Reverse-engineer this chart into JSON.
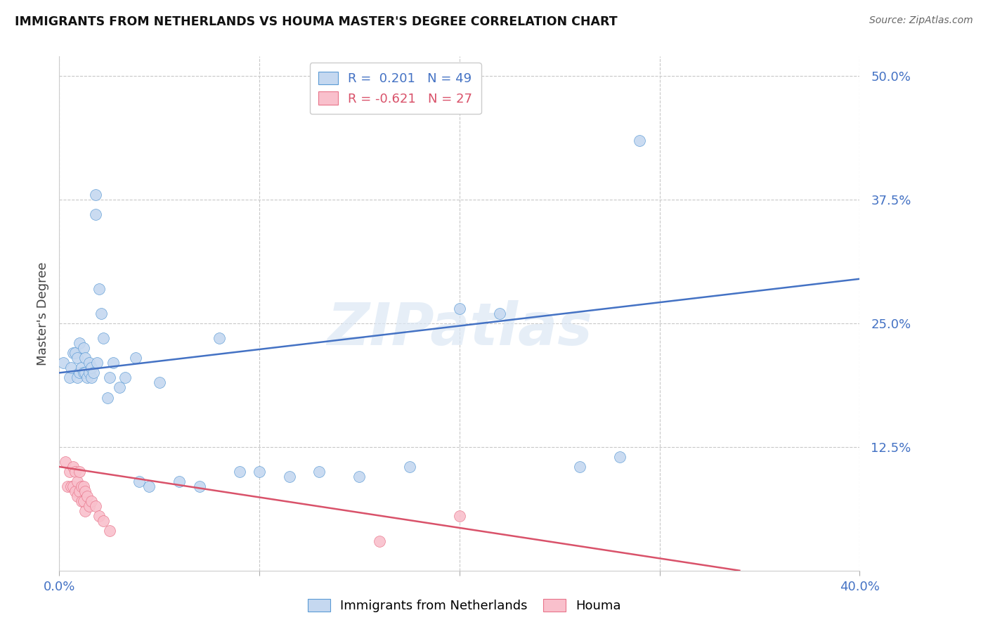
{
  "title": "IMMIGRANTS FROM NETHERLANDS VS HOUMA MASTER'S DEGREE CORRELATION CHART",
  "source": "Source: ZipAtlas.com",
  "ylabel": "Master's Degree",
  "ytick_labels": [
    "12.5%",
    "25.0%",
    "37.5%",
    "50.0%"
  ],
  "ytick_values": [
    0.125,
    0.25,
    0.375,
    0.5
  ],
  "xlim": [
    0.0,
    0.4
  ],
  "ylim": [
    0.0,
    0.52
  ],
  "legend1_r": "0.201",
  "legend1_n": "49",
  "legend2_r": "-0.621",
  "legend2_n": "27",
  "blue_fill": "#c5d8f0",
  "pink_fill": "#f9c0cc",
  "blue_edge": "#5b9bd5",
  "pink_edge": "#e8748a",
  "line_blue": "#4472c4",
  "line_pink": "#d9526a",
  "tick_color": "#4472c4",
  "grid_color": "#c8c8c8",
  "watermark": "ZIPatlas",
  "blue_scatter_x": [
    0.002,
    0.005,
    0.006,
    0.007,
    0.008,
    0.009,
    0.009,
    0.01,
    0.01,
    0.011,
    0.012,
    0.012,
    0.013,
    0.013,
    0.014,
    0.015,
    0.015,
    0.016,
    0.016,
    0.017,
    0.018,
    0.018,
    0.019,
    0.02,
    0.021,
    0.022,
    0.024,
    0.025,
    0.027,
    0.03,
    0.033,
    0.038,
    0.04,
    0.045,
    0.05,
    0.06,
    0.07,
    0.08,
    0.09,
    0.1,
    0.115,
    0.13,
    0.15,
    0.175,
    0.2,
    0.22,
    0.26,
    0.28,
    0.29
  ],
  "blue_scatter_y": [
    0.21,
    0.195,
    0.205,
    0.22,
    0.22,
    0.195,
    0.215,
    0.2,
    0.23,
    0.205,
    0.225,
    0.2,
    0.2,
    0.215,
    0.195,
    0.2,
    0.21,
    0.195,
    0.205,
    0.2,
    0.38,
    0.36,
    0.21,
    0.285,
    0.26,
    0.235,
    0.175,
    0.195,
    0.21,
    0.185,
    0.195,
    0.215,
    0.09,
    0.085,
    0.19,
    0.09,
    0.085,
    0.235,
    0.1,
    0.1,
    0.095,
    0.1,
    0.095,
    0.105,
    0.265,
    0.26,
    0.105,
    0.115,
    0.435
  ],
  "pink_scatter_x": [
    0.003,
    0.004,
    0.005,
    0.006,
    0.007,
    0.007,
    0.008,
    0.008,
    0.009,
    0.009,
    0.01,
    0.01,
    0.011,
    0.011,
    0.012,
    0.012,
    0.013,
    0.013,
    0.014,
    0.015,
    0.016,
    0.018,
    0.02,
    0.022,
    0.025,
    0.16,
    0.2
  ],
  "pink_scatter_y": [
    0.11,
    0.085,
    0.1,
    0.085,
    0.105,
    0.085,
    0.1,
    0.08,
    0.09,
    0.075,
    0.1,
    0.08,
    0.085,
    0.07,
    0.085,
    0.07,
    0.08,
    0.06,
    0.075,
    0.065,
    0.07,
    0.065,
    0.055,
    0.05,
    0.04,
    0.03,
    0.055
  ],
  "blue_line_x": [
    0.0,
    0.4
  ],
  "blue_line_y": [
    0.2,
    0.295
  ],
  "pink_line_x": [
    0.0,
    0.34
  ],
  "pink_line_y": [
    0.105,
    0.0
  ]
}
